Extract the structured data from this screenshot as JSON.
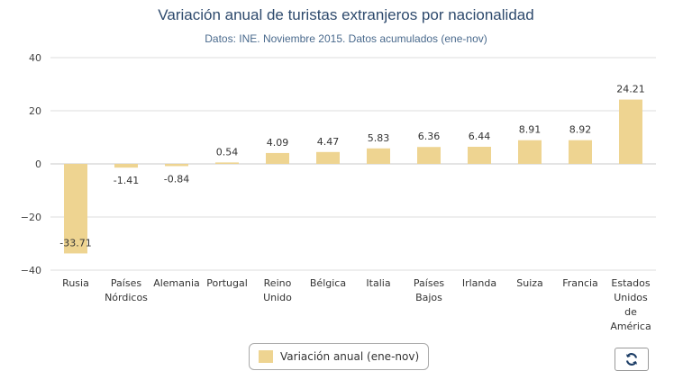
{
  "colors": {
    "bar": "#eed491",
    "grid": "#dddddd",
    "zero_line": "#c8c8c8"
  },
  "legend": {
    "label": "Variación anual (ene-nov)",
    "swatch_color": "#eed491"
  },
  "reset_button": {
    "icon": "refresh-icon"
  },
  "chart_data": {
    "type": "bar",
    "title": "Variación anual de turistas extranjeros por nacionalidad",
    "subtitle": "Datos: INE. Noviembre 2015. Datos acumulados (ene-nov)",
    "xlabel": "",
    "ylabel": "",
    "categories": [
      [
        "Rusia"
      ],
      [
        "Países",
        "Nórdicos"
      ],
      [
        "Alemania"
      ],
      [
        "Portugal"
      ],
      [
        "Reino",
        "Unido"
      ],
      [
        "Bélgica"
      ],
      [
        "Italia"
      ],
      [
        "Países",
        "Bajos"
      ],
      [
        "Irlanda"
      ],
      [
        "Suiza"
      ],
      [
        "Francia"
      ],
      [
        "Estados",
        "Unidos",
        "de",
        "América"
      ]
    ],
    "series": [
      {
        "name": "Variación anual (ene-nov)",
        "values": [
          -33.71,
          -1.41,
          -0.84,
          0.54,
          4.09,
          4.47,
          5.83,
          6.36,
          6.44,
          8.91,
          8.92,
          24.21
        ],
        "labels": [
          "-33.71",
          "-1.41",
          "-0.84",
          "0.54",
          "4.09",
          "4.47",
          "5.83",
          "6.36",
          "6.44",
          "8.91",
          "8.92",
          "24.21"
        ]
      }
    ],
    "ylim": [
      -40,
      40
    ],
    "yticks": [
      -40,
      -20,
      0,
      20,
      40
    ],
    "ytick_labels": [
      "−40",
      "−20",
      "0",
      "20",
      "40"
    ],
    "grid": true,
    "legend_position": "bottom-center"
  }
}
